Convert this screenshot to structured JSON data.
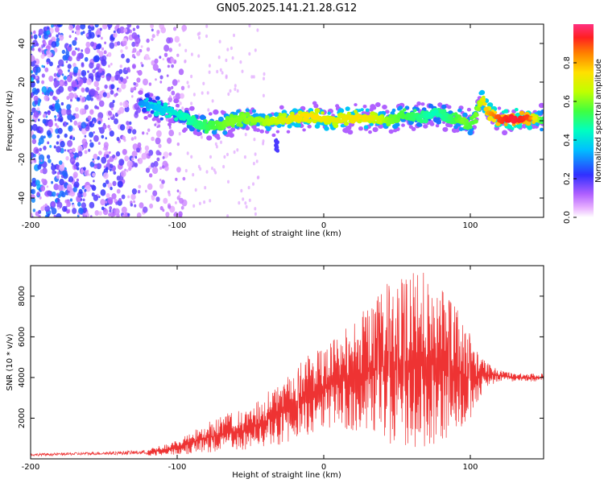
{
  "title": "GN05.2025.141.21.28.G12",
  "colors": {
    "snr_line": "#ee3333",
    "blob_core": "#7733dd"
  },
  "chart_data": [
    {
      "type": "heatmap",
      "title": "GN05.2025.141.21.28.G12",
      "xlabel": "Height of straight line (km)",
      "ylabel": "Frequency (Hz)",
      "xlim": [
        -200,
        150
      ],
      "ylim": [
        -50,
        50
      ],
      "xticks": [
        -200,
        -100,
        0,
        100
      ],
      "yticks": [
        -40,
        -20,
        0,
        20,
        40
      ],
      "colorbar": {
        "label": "Normalized spectral amplitude",
        "range": [
          0,
          1
        ],
        "ticks": [
          "0.0",
          "0.2",
          "0.4",
          "0.6",
          "0.8"
        ],
        "colormap": "rainbow (magenta-blue-cyan-green-yellow-red)"
      },
      "ridge": {
        "description": "main frequency trace, normalized amplitude",
        "x": [
          -125,
          -115,
          -105,
          -95,
          -85,
          -75,
          -65,
          -55,
          -45,
          -35,
          -25,
          -15,
          -5,
          5,
          15,
          25,
          35,
          45,
          55,
          65,
          75,
          85,
          95,
          100,
          105,
          108,
          112,
          120,
          130,
          140,
          150
        ],
        "freq": [
          9,
          7,
          5,
          2,
          -2,
          -3,
          -1,
          1,
          0,
          0,
          1,
          2,
          2,
          0,
          1,
          2,
          1,
          0,
          3,
          2,
          4,
          2,
          0,
          -2,
          5,
          12,
          4,
          1,
          1,
          1,
          0
        ],
        "amplitude": [
          0.3,
          0.35,
          0.4,
          0.45,
          0.5,
          0.55,
          0.6,
          0.6,
          0.62,
          0.65,
          0.7,
          0.75,
          0.75,
          0.7,
          0.72,
          0.75,
          0.7,
          0.6,
          0.55,
          0.5,
          0.45,
          0.5,
          0.6,
          0.55,
          0.6,
          0.7,
          0.8,
          0.9,
          0.95,
          0.9,
          0.5
        ]
      }
    },
    {
      "type": "line",
      "xlabel": "Height of straight line (km)",
      "ylabel": "SNR (10 * v/v)",
      "xlim": [
        -200,
        150
      ],
      "ylim": [
        0,
        9500
      ],
      "xticks": [
        -200,
        -100,
        0,
        100
      ],
      "yticks": [
        2000,
        4000,
        6000,
        8000
      ],
      "envelope": {
        "x": [
          -200,
          -150,
          -120,
          -100,
          -80,
          -60,
          -50,
          -40,
          -30,
          -20,
          -10,
          0,
          10,
          20,
          30,
          40,
          50,
          60,
          70,
          80,
          90,
          100,
          110,
          120,
          130,
          150
        ],
        "upper": [
          300,
          400,
          500,
          900,
          1800,
          2400,
          2500,
          3200,
          3800,
          4500,
          5200,
          5500,
          6000,
          6800,
          7500,
          8200,
          8700,
          9200,
          9000,
          8500,
          7500,
          6000,
          4800,
          4400,
          4200,
          4200
        ],
        "lower": [
          100,
          150,
          150,
          200,
          250,
          300,
          400,
          500,
          700,
          900,
          1200,
          1500,
          1500,
          1300,
          1100,
          900,
          600,
          400,
          600,
          800,
          1300,
          1800,
          3500,
          3800,
          3800,
          3800
        ]
      }
    }
  ]
}
